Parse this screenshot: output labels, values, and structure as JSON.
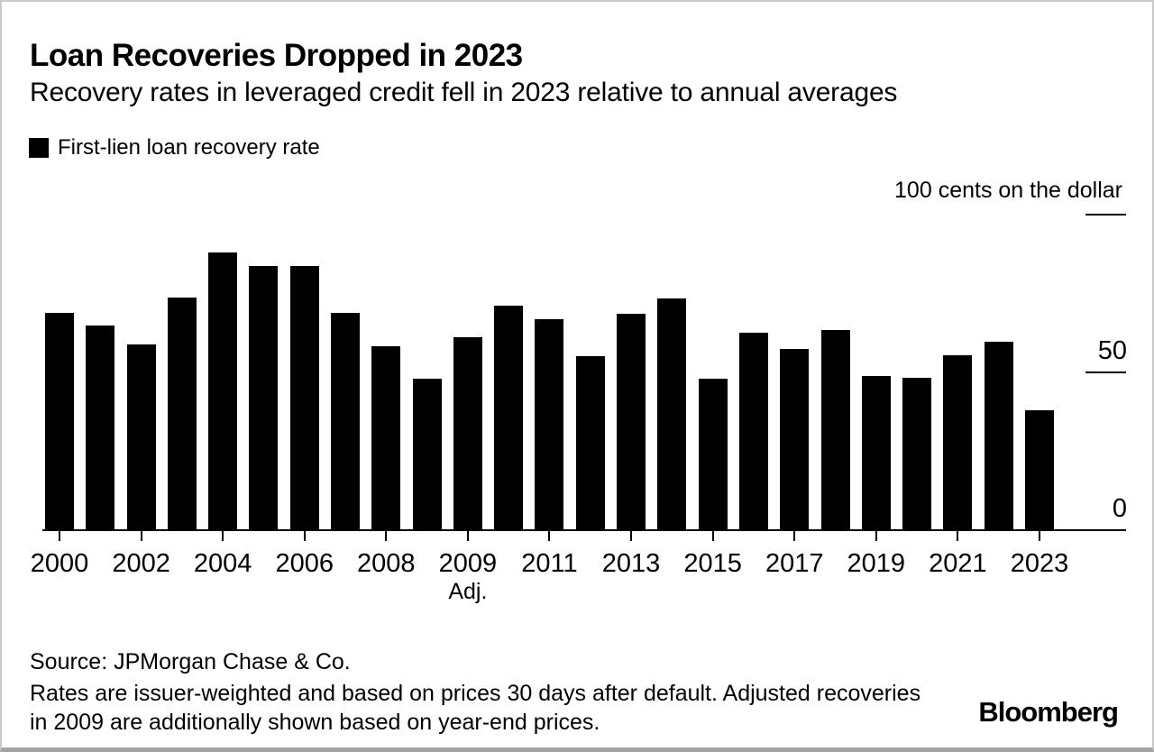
{
  "header": {
    "title": "Loan Recoveries Dropped in 2023",
    "subtitle": "Recovery rates in leveraged credit fell in 2023 relative to annual averages"
  },
  "legend": {
    "label": "First-lien loan recovery rate",
    "swatch_color": "#000000"
  },
  "chart_data": {
    "type": "bar",
    "title": "Loan Recoveries Dropped in 2023",
    "series_name": "First-lien loan recovery rate",
    "unit_label": "100 cents on the dollar",
    "bar_color": "#000000",
    "ylim": [
      0,
      100
    ],
    "grid": false,
    "categories": [
      "2000",
      "2001",
      "2002",
      "2003",
      "2004",
      "2005",
      "2006",
      "2007",
      "2008",
      "2009",
      "2009 Adj.",
      "2010",
      "2011",
      "2012",
      "2013",
      "2014",
      "2015",
      "2016",
      "2017",
      "2018",
      "2019",
      "2020",
      "2021",
      "2022",
      "2023"
    ],
    "values": [
      68.9,
      64.9,
      58.9,
      73.7,
      88.0,
      83.7,
      83.7,
      68.9,
      58.3,
      48.1,
      61.2,
      71.2,
      67.0,
      55.2,
      68.6,
      73.4,
      48.1,
      62.7,
      57.4,
      63.4,
      48.9,
      48.2,
      55.5,
      59.8,
      37.9
    ],
    "x_ticks": [
      {
        "index": 0,
        "label": "2000"
      },
      {
        "index": 2,
        "label": "2002"
      },
      {
        "index": 4,
        "label": "2004"
      },
      {
        "index": 6,
        "label": "2006"
      },
      {
        "index": 8,
        "label": "2008"
      },
      {
        "index": 10,
        "label": "2009",
        "sublabel": "Adj."
      },
      {
        "index": 12,
        "label": "2011"
      },
      {
        "index": 14,
        "label": "2013"
      },
      {
        "index": 16,
        "label": "2015"
      },
      {
        "index": 18,
        "label": "2017"
      },
      {
        "index": 20,
        "label": "2019"
      },
      {
        "index": 22,
        "label": "2021"
      },
      {
        "index": 24,
        "label": "2023"
      }
    ],
    "y_axis": {
      "ticks": [
        {
          "value": 100,
          "label": ""
        },
        {
          "value": 50,
          "label": "50"
        },
        {
          "value": 0,
          "label": "0"
        }
      ]
    }
  },
  "footer": {
    "source": "Source: JPMorgan Chase & Co.",
    "note": "Rates are issuer-weighted and based on prices 30 days after default. Adjusted recoveries in 2009 are additionally shown based on year-end prices.",
    "brand": "Bloomberg"
  }
}
